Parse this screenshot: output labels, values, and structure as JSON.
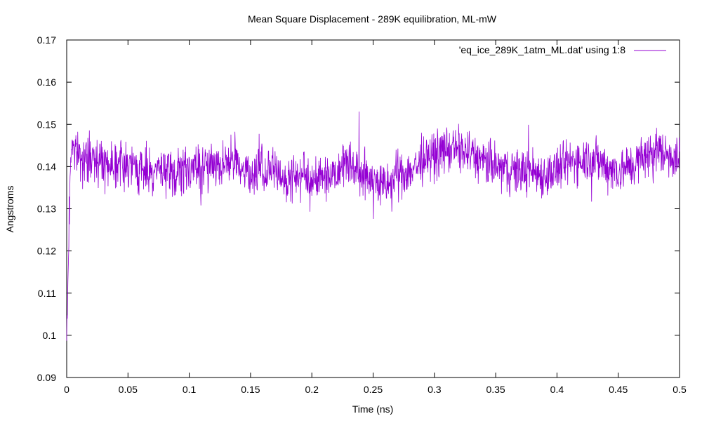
{
  "chart_data": {
    "type": "line",
    "title": "Mean Square Displacement - 289K equilibration, ML-mW",
    "xlabel": "Time (ns)",
    "ylabel": "Angstroms",
    "xlim": [
      0,
      0.5
    ],
    "ylim": [
      0.09,
      0.17
    ],
    "x_ticks": [
      "0",
      "0.05",
      "0.1",
      "0.15",
      "0.2",
      "0.25",
      "0.3",
      "0.35",
      "0.4",
      "0.45",
      "0.5"
    ],
    "y_ticks": [
      "0.09",
      "0.1",
      "0.11",
      "0.12",
      "0.13",
      "0.14",
      "0.15",
      "0.16",
      "0.17"
    ],
    "grid": false,
    "legend_position": "top-right",
    "series_color": "#9400d3",
    "series": [
      {
        "name": "'eq_ice_289K_1atm_ML.dat' using 1:8",
        "x": [
          0,
          0.0005,
          0.001,
          0.0015,
          0.002,
          0.003,
          0.004,
          0.005,
          0.006,
          0.008,
          0.01,
          0.015,
          0.02,
          0.025,
          0.03,
          0.035,
          0.04,
          0.045,
          0.05,
          0.06,
          0.07,
          0.08,
          0.087,
          0.09,
          0.1,
          0.11,
          0.12,
          0.13,
          0.14,
          0.15,
          0.16,
          0.17,
          0.18,
          0.19,
          0.2,
          0.21,
          0.22,
          0.228,
          0.24,
          0.25,
          0.26,
          0.27,
          0.28,
          0.29,
          0.3,
          0.31,
          0.32,
          0.33,
          0.34,
          0.35,
          0.36,
          0.37,
          0.38,
          0.39,
          0.4,
          0.41,
          0.42,
          0.43,
          0.44,
          0.45,
          0.46,
          0.47,
          0.48,
          0.49,
          0.5
        ],
        "y": [
          0.099,
          0.105,
          0.112,
          0.12,
          0.128,
          0.14,
          0.145,
          0.146,
          0.145,
          0.143,
          0.143,
          0.141,
          0.142,
          0.142,
          0.141,
          0.141,
          0.141,
          0.141,
          0.14,
          0.139,
          0.139,
          0.139,
          0.138,
          0.138,
          0.14,
          0.139,
          0.141,
          0.141,
          0.141,
          0.138,
          0.139,
          0.139,
          0.137,
          0.138,
          0.137,
          0.138,
          0.139,
          0.142,
          0.138,
          0.137,
          0.135,
          0.138,
          0.139,
          0.141,
          0.143,
          0.144,
          0.144,
          0.143,
          0.141,
          0.14,
          0.139,
          0.139,
          0.139,
          0.138,
          0.139,
          0.141,
          0.142,
          0.142,
          0.14,
          0.139,
          0.14,
          0.142,
          0.144,
          0.143,
          0.142
        ]
      }
    ]
  }
}
